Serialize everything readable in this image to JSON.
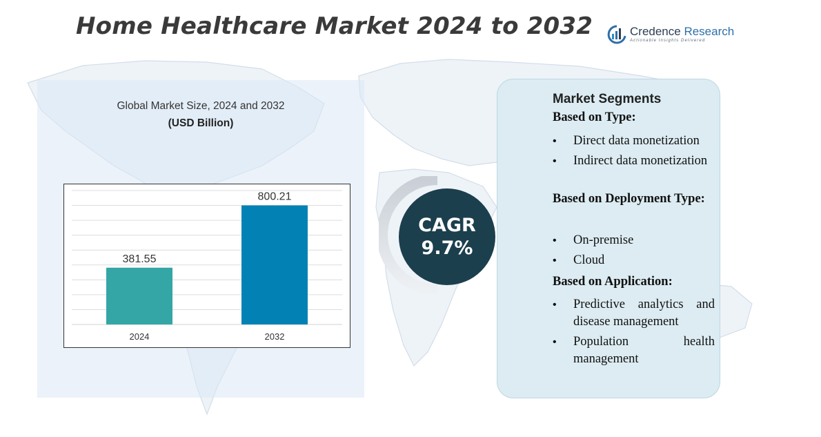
{
  "title": "Home Healthcare Market 2024 to 2032",
  "logo": {
    "name_part1": "Credence",
    "name_part2": " Research",
    "tagline": "Actionable Insights Delivered"
  },
  "chart_data": {
    "type": "bar",
    "title": "Global Market Size,  2024 and 2032",
    "unit_label": "(USD Billion)",
    "categories": [
      "2024",
      "2032"
    ],
    "values": [
      381.55,
      800.21
    ],
    "value_labels": [
      "381.55",
      "800.21"
    ],
    "colors": [
      "#34a6a6",
      "#0282b4"
    ],
    "ylim": [
      0,
      900
    ],
    "grid": true
  },
  "cagr": {
    "label": "CAGR",
    "value": "9.7%"
  },
  "segments": {
    "title": "Market Segments",
    "groups": [
      {
        "heading": "Based on Type:",
        "items": [
          "Direct data monetization",
          "Indirect data monetization"
        ]
      },
      {
        "heading": "Based on Deployment Type:",
        "items": [
          "On-premise",
          "Cloud"
        ]
      },
      {
        "heading": "Based on Application:",
        "items": [
          "Predictive analytics and disease management",
          "Population health management"
        ]
      }
    ]
  }
}
